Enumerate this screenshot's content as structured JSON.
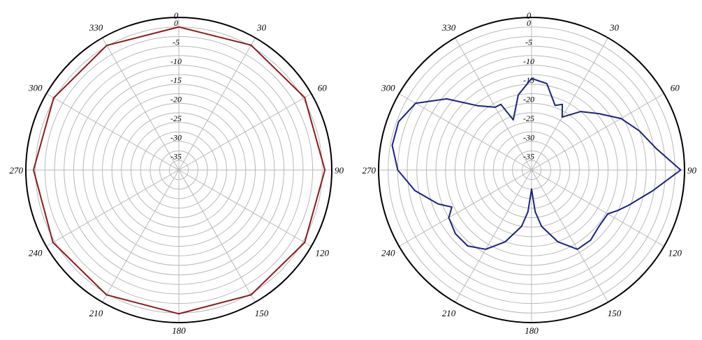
{
  "chart_data": [
    {
      "type": "polar-line",
      "angle_ticks": [
        "0",
        "30",
        "60",
        "90",
        "120",
        "150",
        "180",
        "210",
        "240",
        "270",
        "300",
        "330"
      ],
      "radial_ticks": [
        "0",
        "-5",
        "-10",
        "-15",
        "-20",
        "-25",
        "-30",
        "-35"
      ],
      "rlim": [
        -40,
        0
      ],
      "grid": true,
      "line_color": "#8b1a1a",
      "series": [
        {
          "theta": [
            0,
            30,
            60,
            90,
            120,
            150,
            180,
            210,
            240,
            270,
            300,
            330,
            360
          ],
          "r": [
            -2.5,
            -2.2,
            -2.0,
            -1.8,
            -2.0,
            -2.2,
            -2.3,
            -2.2,
            -2.0,
            -2.0,
            -2.2,
            -2.3,
            -2.5
          ]
        }
      ]
    },
    {
      "type": "polar-line",
      "angle_ticks": [
        "0",
        "30",
        "60",
        "90",
        "120",
        "150",
        "180",
        "210",
        "240",
        "270",
        "300",
        "330"
      ],
      "radial_ticks": [
        "0",
        "-5",
        "-10",
        "-15",
        "-20",
        "-25",
        "-30",
        "-35"
      ],
      "rlim": [
        -40,
        0
      ],
      "grid": true,
      "line_color": "#1a237e",
      "series": [
        {
          "theta": [
            0,
            10,
            20,
            25,
            30,
            40,
            50,
            60,
            70,
            80,
            90,
            100,
            110,
            115,
            120,
            130,
            140,
            150,
            160,
            170,
            175,
            180,
            185,
            190,
            200,
            210,
            220,
            230,
            240,
            245,
            250,
            260,
            270,
            280,
            290,
            300,
            310,
            320,
            330,
            335,
            340,
            350,
            360
          ],
          "r": [
            -16,
            -17,
            -22,
            -21,
            -24,
            -20,
            -17,
            -13,
            -10,
            -7,
            -1,
            -8,
            -13,
            -15,
            -17,
            -17,
            -16,
            -16,
            -20,
            -25,
            -29,
            -35,
            -29,
            -25,
            -20,
            -16,
            -14,
            -14,
            -15,
            -17,
            -14,
            -9,
            -5,
            -3,
            -3,
            -5,
            -11,
            -18,
            -21,
            -21,
            -26,
            -20,
            -16
          ]
        }
      ]
    }
  ]
}
